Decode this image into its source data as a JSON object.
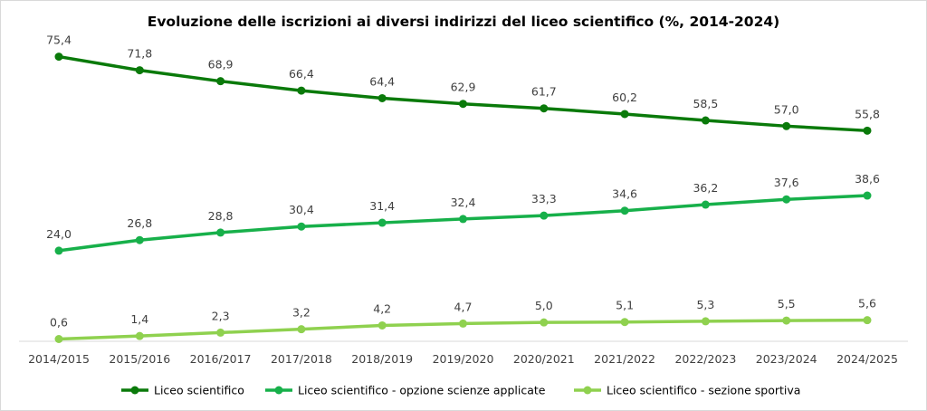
{
  "chart_data": {
    "type": "line",
    "title": "Evoluzione delle iscrizioni ai diversi indirizzi del liceo scientifico (%, 2014-2024)",
    "xlabel": "",
    "ylabel": "",
    "ylim": [
      0,
      80
    ],
    "grid": false,
    "legend_position": "bottom",
    "categories": [
      "2014/2015",
      "2015/2016",
      "2016/2017",
      "2017/2018",
      "2018/2019",
      "2019/2020",
      "2020/2021",
      "2021/2022",
      "2022/2023",
      "2023/2024",
      "2024/2025"
    ],
    "series": [
      {
        "name": "Liceo scientifico",
        "color": "#0a7a0a",
        "values": [
          75.4,
          71.8,
          68.9,
          66.4,
          64.4,
          62.9,
          61.7,
          60.2,
          58.5,
          57.0,
          55.8
        ],
        "labels": [
          "75,4",
          "71,8",
          "68,9",
          "66,4",
          "64,4",
          "62,9",
          "61,7",
          "60,2",
          "58,5",
          "57,0",
          "55,8"
        ]
      },
      {
        "name": "Liceo scientifico - opzione scienze applicate",
        "color": "#17b04a",
        "values": [
          24.0,
          26.8,
          28.8,
          30.4,
          31.4,
          32.4,
          33.3,
          34.6,
          36.2,
          37.6,
          38.6
        ],
        "labels": [
          "24,0",
          "26,8",
          "28,8",
          "30,4",
          "31,4",
          "32,4",
          "33,3",
          "34,6",
          "36,2",
          "37,6",
          "38,6"
        ]
      },
      {
        "name": "Liceo scientifico - sezione sportiva",
        "color": "#8fd14f",
        "values": [
          0.6,
          1.4,
          2.3,
          3.2,
          4.2,
          4.7,
          5.0,
          5.1,
          5.3,
          5.5,
          5.6
        ],
        "labels": [
          "0,6",
          "1,4",
          "2,3",
          "3,2",
          "4,2",
          "4,7",
          "5,0",
          "5,1",
          "5,3",
          "5,5",
          "5,6"
        ]
      }
    ]
  }
}
